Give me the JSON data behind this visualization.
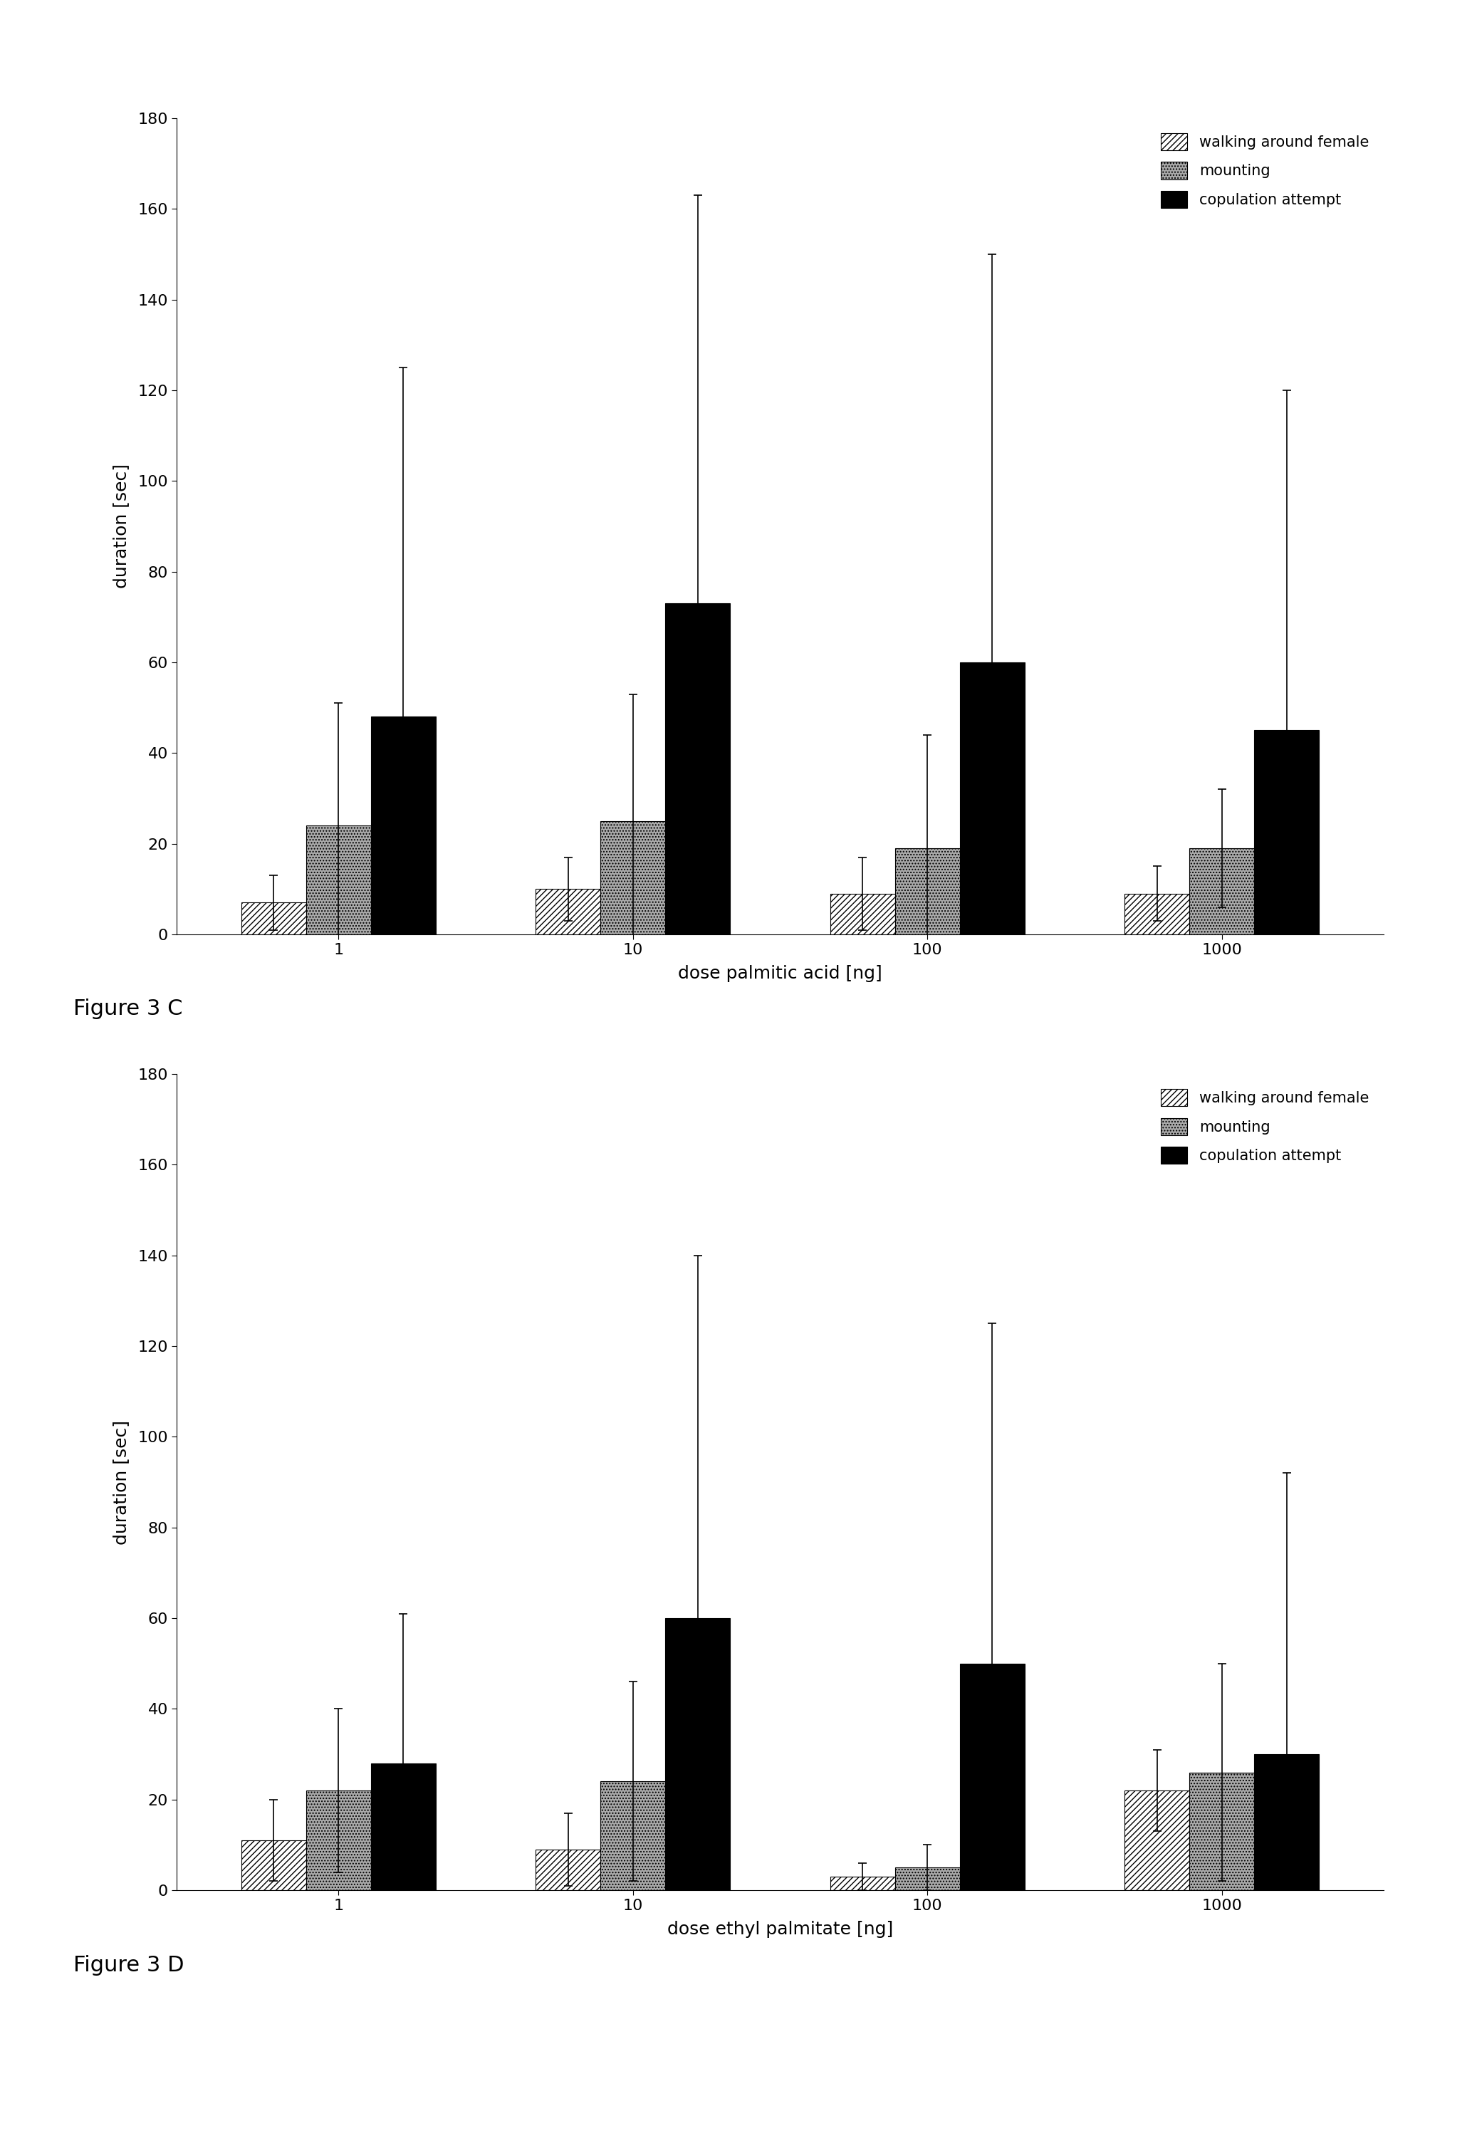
{
  "top_chart": {
    "xlabel": "dose palmitic acid [ng]",
    "ylabel": "duration [sec]",
    "categories": [
      "1",
      "10",
      "100",
      "1000"
    ],
    "walking": [
      7,
      10,
      9,
      9
    ],
    "walking_err": [
      6,
      7,
      8,
      6
    ],
    "mounting": [
      24,
      25,
      19,
      19
    ],
    "mounting_err": [
      27,
      28,
      25,
      13
    ],
    "copulation": [
      48,
      73,
      60,
      45
    ],
    "copulation_err": [
      77,
      90,
      90,
      75
    ],
    "ylim": [
      0,
      180
    ],
    "yticks": [
      0,
      20,
      40,
      60,
      80,
      100,
      120,
      140,
      160,
      180
    ],
    "figure_label": "Figure 3 C"
  },
  "bottom_chart": {
    "xlabel": "dose ethyl palmitate [ng]",
    "ylabel": "duration [sec]",
    "categories": [
      "1",
      "10",
      "100",
      "1000"
    ],
    "walking": [
      11,
      9,
      3,
      22
    ],
    "walking_err": [
      9,
      8,
      3,
      9
    ],
    "mounting": [
      22,
      24,
      5,
      26
    ],
    "mounting_err": [
      18,
      22,
      5,
      24
    ],
    "copulation": [
      28,
      60,
      50,
      30
    ],
    "copulation_err": [
      33,
      80,
      75,
      62
    ],
    "ylim": [
      0,
      180
    ],
    "yticks": [
      0,
      20,
      40,
      60,
      80,
      100,
      120,
      140,
      160,
      180
    ],
    "figure_label": "Figure 3 D"
  },
  "bar_width": 0.22,
  "colors": {
    "walking": "white",
    "mounting": "#aaaaaa",
    "copulation": "#000000"
  },
  "hatches": {
    "walking": "////",
    "mounting": "....",
    "copulation": ""
  },
  "label_font_size": 18,
  "tick_font_size": 16,
  "legend_font_size": 15,
  "figure_label_font_size": 22
}
